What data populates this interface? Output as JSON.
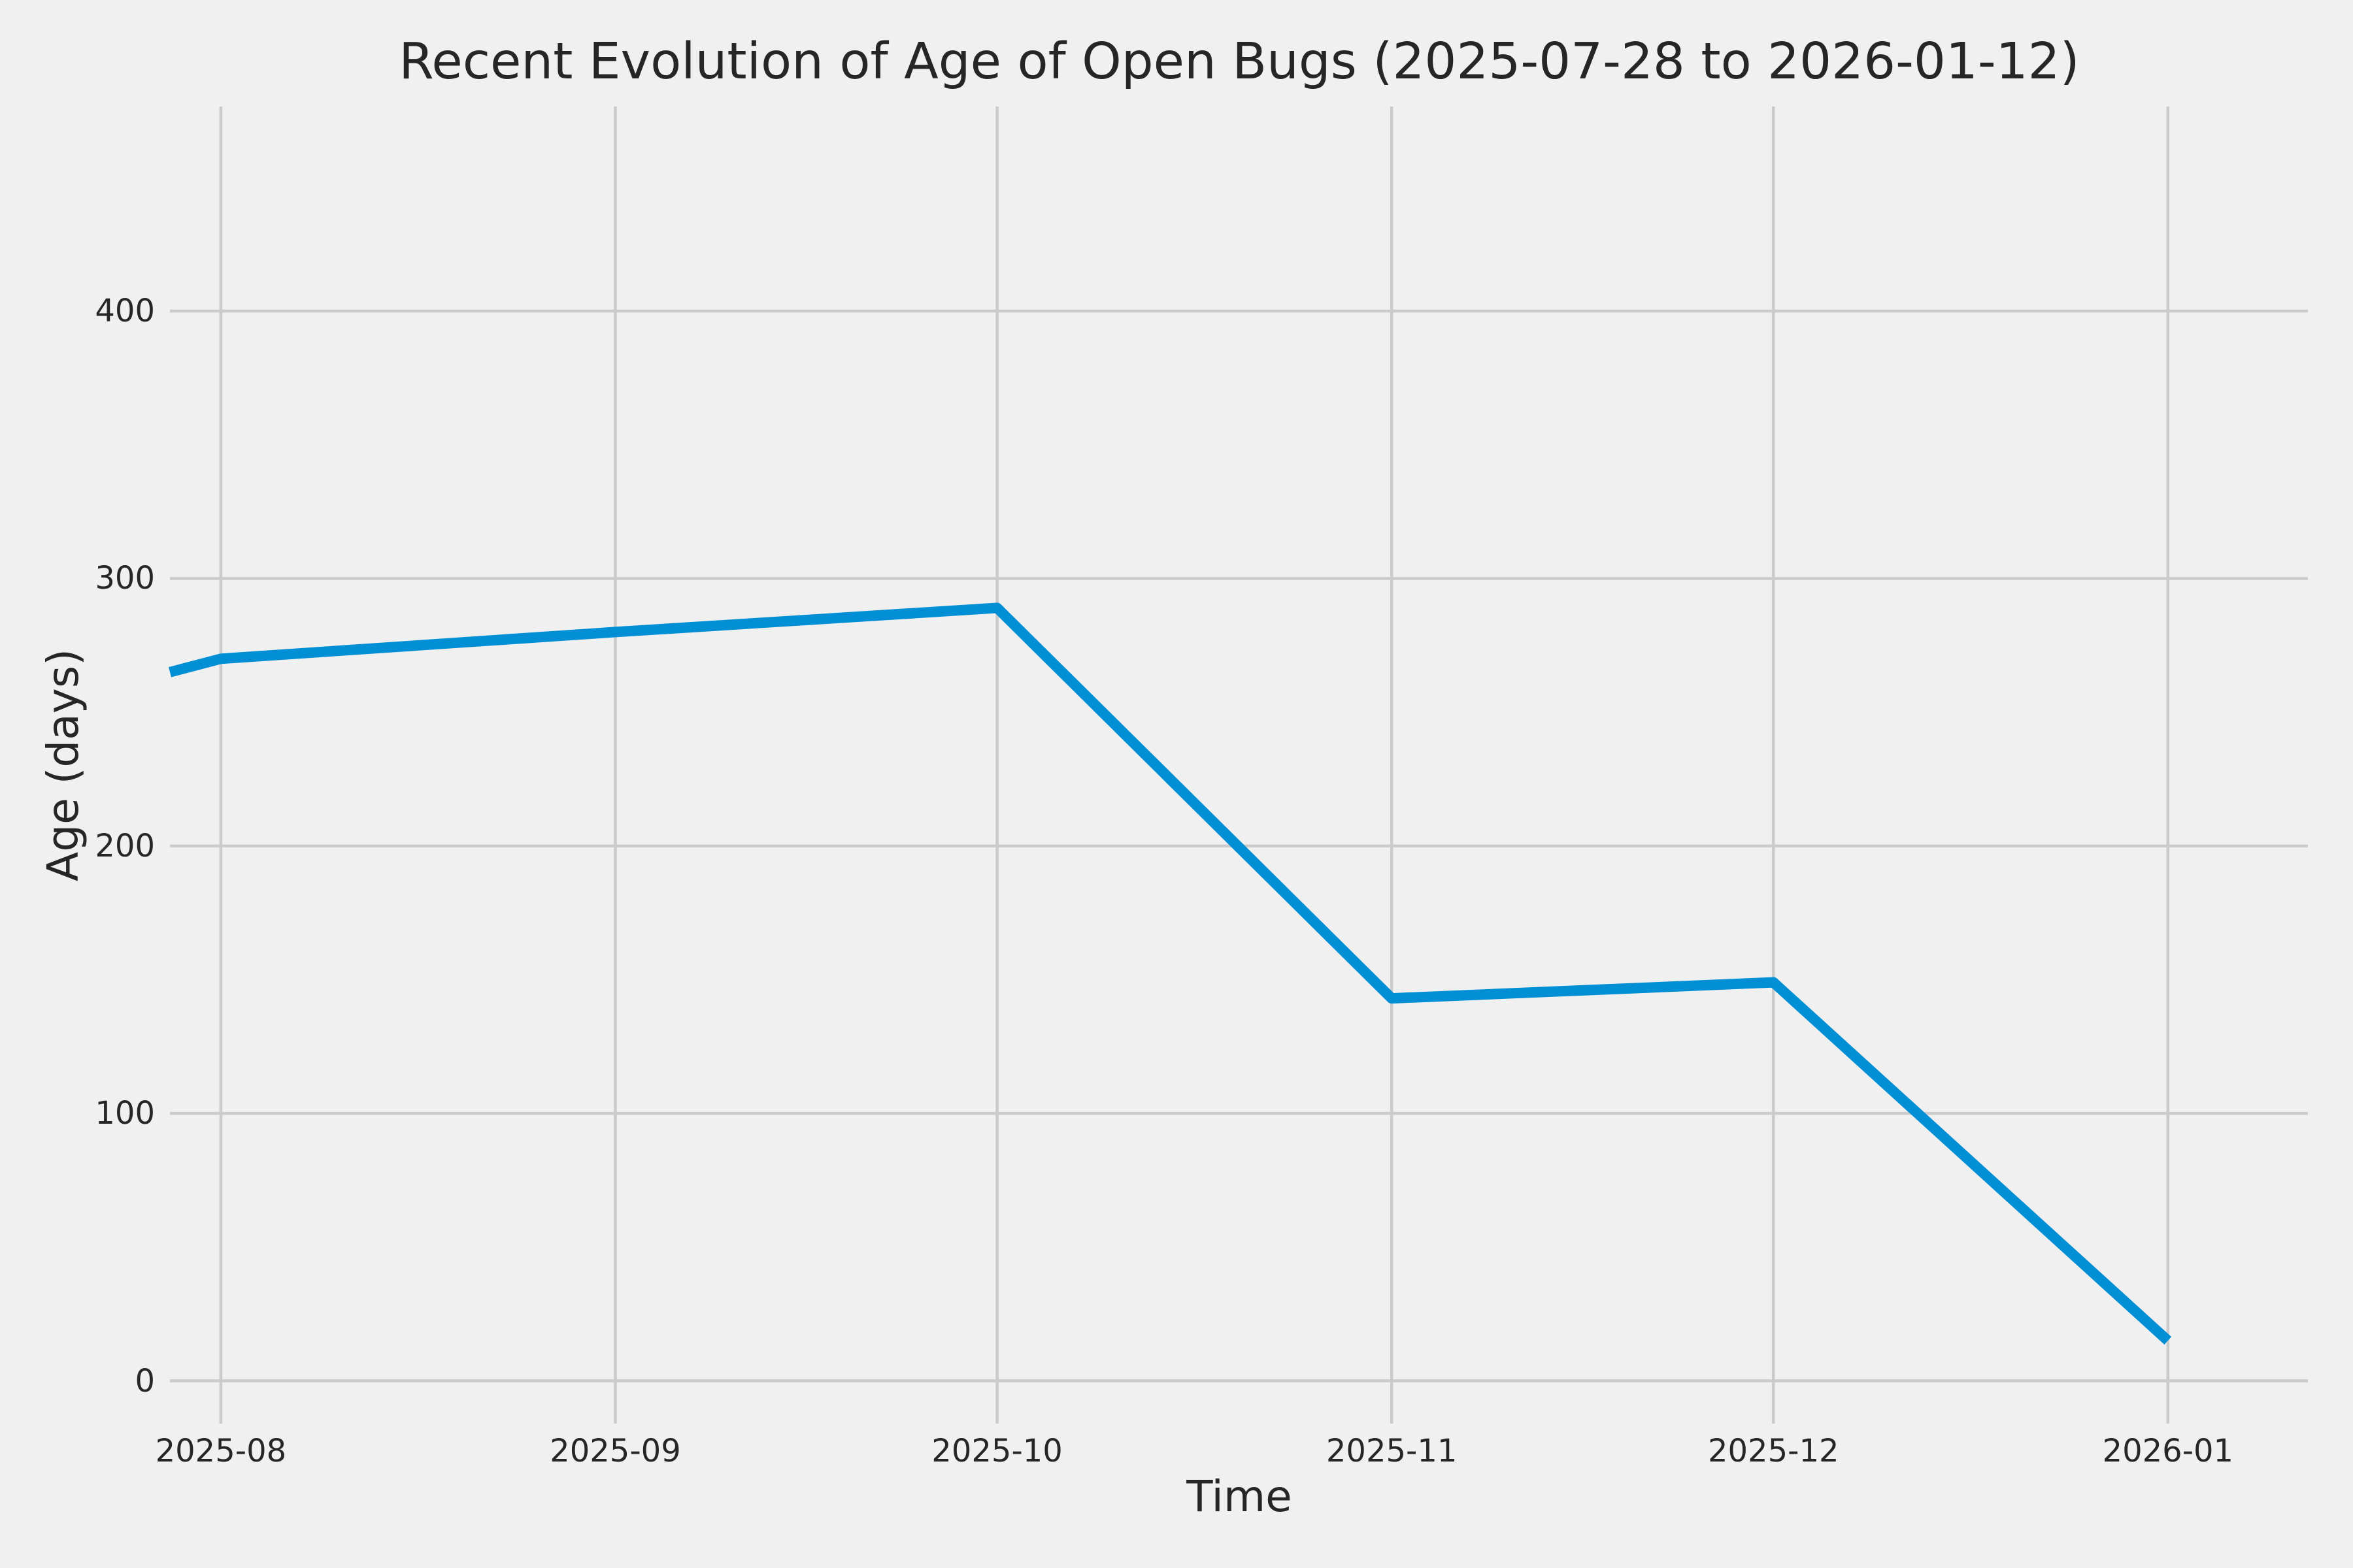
{
  "chart_data": {
    "type": "line",
    "title": "Recent Evolution of Age of Open Bugs (2025-07-28 to 2026-01-12)",
    "xlabel": "Time",
    "ylabel": "Age (days)",
    "background_color": "#f0f0f0",
    "grid_color": "#cbcbcb",
    "text_color": "#262626",
    "line_color": "#008fd5",
    "grid": true,
    "legend": false,
    "x_range": {
      "start_date": "2025-07-28",
      "end_date": "2026-01-12",
      "total_days": 168
    },
    "ylim": [
      -16,
      476.5
    ],
    "yticks": [
      {
        "label": "0",
        "value": 0
      },
      {
        "label": "100",
        "value": 100
      },
      {
        "label": "200",
        "value": 200
      },
      {
        "label": "300",
        "value": 300
      },
      {
        "label": "400",
        "value": 400
      }
    ],
    "xticks": [
      {
        "label": "2025-08",
        "day": 4
      },
      {
        "label": "2025-09",
        "day": 35
      },
      {
        "label": "2025-10",
        "day": 65
      },
      {
        "label": "2025-11",
        "day": 96
      },
      {
        "label": "2025-12",
        "day": 126
      },
      {
        "label": "2026-01",
        "day": 157
      }
    ],
    "series": [
      {
        "name": "age-of-open-bugs",
        "points": [
          {
            "date": "2025-07-28",
            "day": 0,
            "value": 265
          },
          {
            "date": "2025-08-01",
            "day": 4,
            "value": 270
          },
          {
            "date": "2025-09-01",
            "day": 35,
            "value": 280
          },
          {
            "date": "2025-10-01",
            "day": 65,
            "value": 289
          },
          {
            "date": "2025-11-01",
            "day": 96,
            "value": 143
          },
          {
            "date": "2025-12-01",
            "day": 126,
            "value": 149
          },
          {
            "date": "2026-01-01",
            "day": 157,
            "value": 15
          }
        ]
      }
    ]
  }
}
